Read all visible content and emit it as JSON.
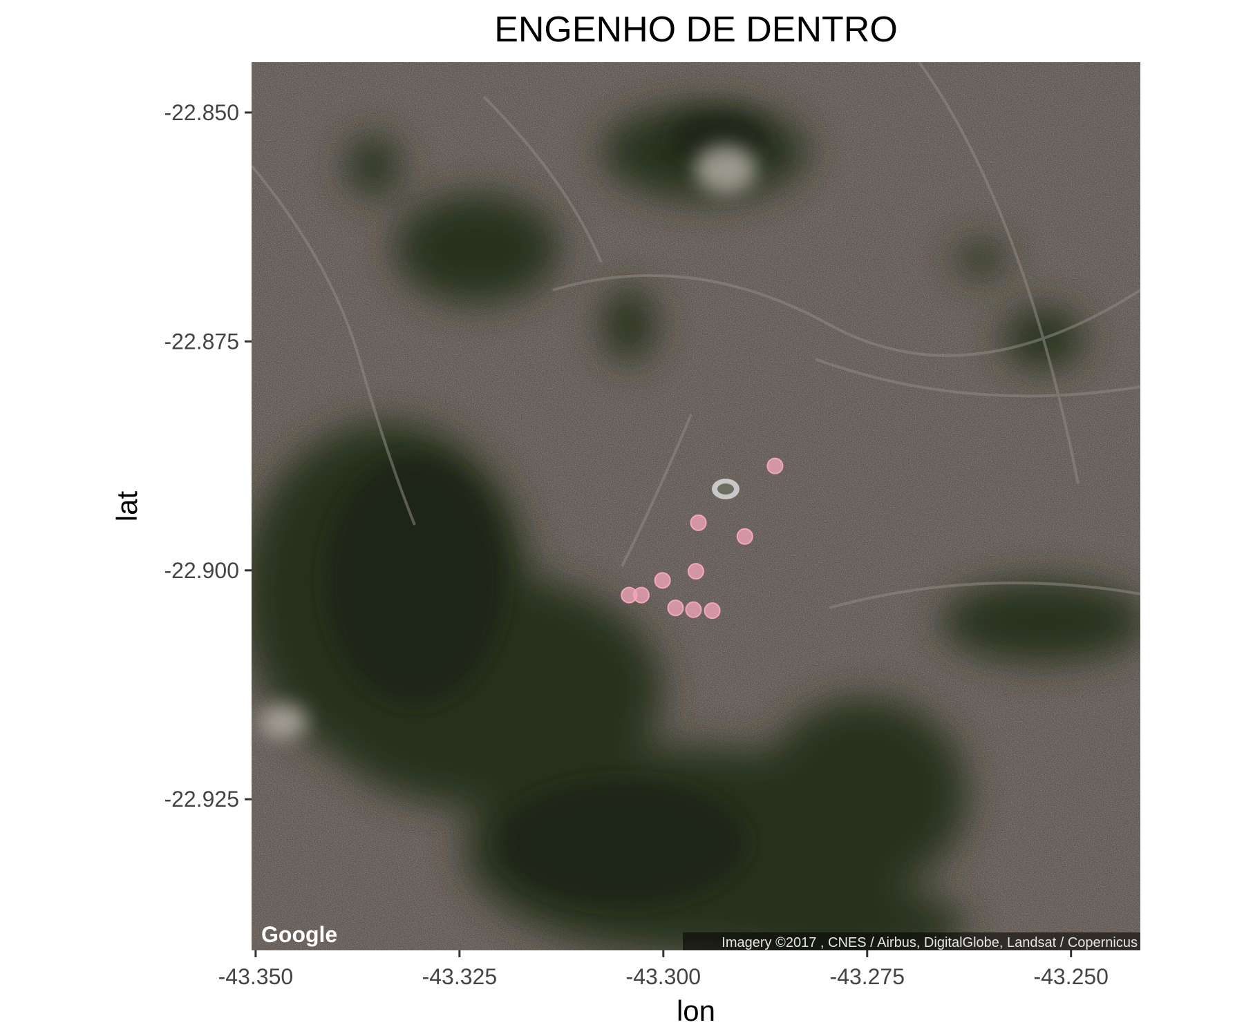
{
  "chart_data": {
    "type": "scatter",
    "title": "ENGENHO DE DENTRO",
    "xlabel": "lon",
    "ylabel": "lat",
    "xlim": [
      -43.3505,
      -43.2415
    ],
    "ylim": [
      -22.9415,
      -22.8445
    ],
    "x_ticks": [
      -43.35,
      -43.325,
      -43.3,
      -43.275,
      -43.25
    ],
    "x_tick_labels": [
      "-43.350",
      "-43.325",
      "-43.300",
      "-43.275",
      "-43.250"
    ],
    "y_ticks": [
      -22.85,
      -22.875,
      -22.9,
      -22.925
    ],
    "y_tick_labels": [
      "-22.850",
      "-22.875",
      "-22.900",
      "-22.925"
    ],
    "point_color": "#f4a7bb",
    "points": [
      {
        "x": -43.2863,
        "y": -22.8886
      },
      {
        "x": -43.2957,
        "y": -22.8948
      },
      {
        "x": -43.29,
        "y": -22.8963
      },
      {
        "x": -43.296,
        "y": -22.9001
      },
      {
        "x": -43.3001,
        "y": -22.9011
      },
      {
        "x": -43.3042,
        "y": -22.9027
      },
      {
        "x": -43.3027,
        "y": -22.9027
      },
      {
        "x": -43.2985,
        "y": -22.9041
      },
      {
        "x": -43.2963,
        "y": -22.9043
      },
      {
        "x": -43.294,
        "y": -22.9044
      }
    ]
  },
  "map": {
    "logo_text": "Google",
    "attribution": "Imagery ©2017 , CNES / Airbus, DigitalGlobe, Landsat / Copernicus"
  }
}
